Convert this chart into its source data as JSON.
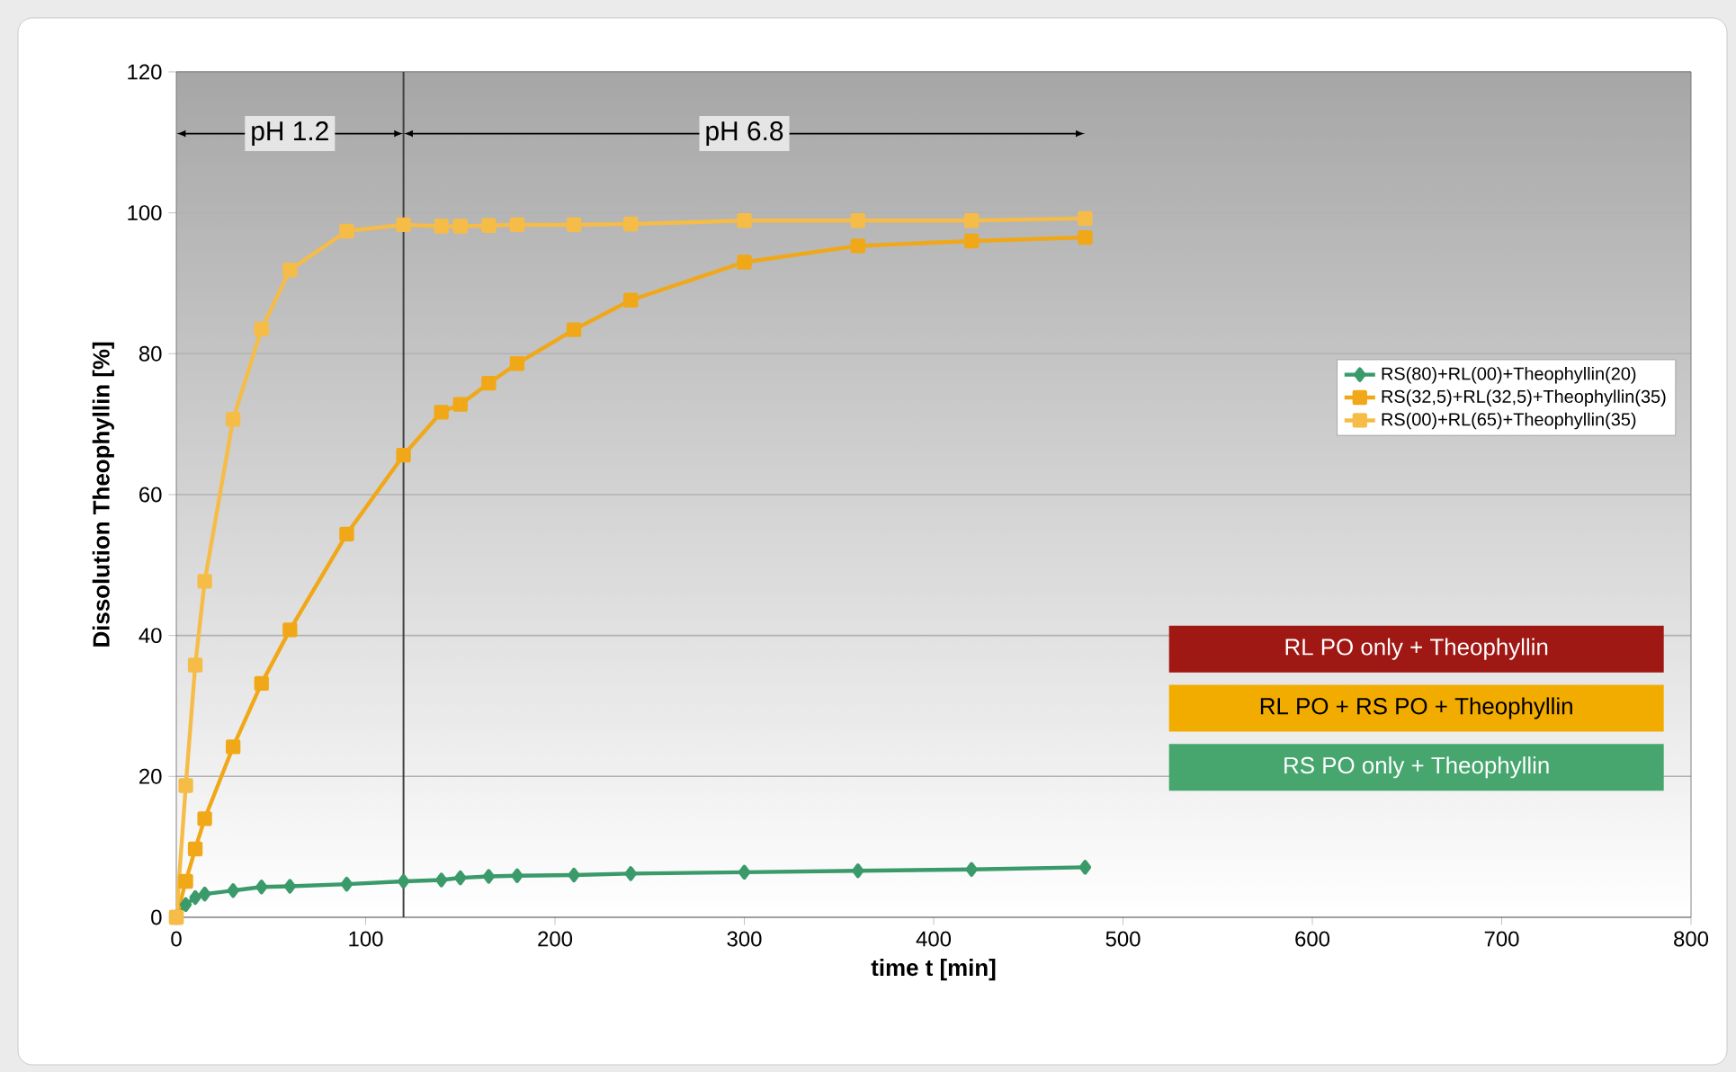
{
  "chart_data": {
    "type": "line",
    "xlabel": "time t [min]",
    "ylabel": "Dissolution Theophyllin [%]",
    "xlim": [
      0,
      800
    ],
    "xticks": [
      0,
      100,
      200,
      300,
      400,
      500,
      600,
      700,
      800
    ],
    "ylim": [
      0,
      120
    ],
    "yticks": [
      0,
      20,
      40,
      60,
      80,
      100,
      120
    ],
    "grid": "y",
    "legend": "right",
    "x": [
      0,
      5,
      10,
      15,
      30,
      45,
      60,
      90,
      120,
      140,
      150,
      165,
      180,
      210,
      240,
      300,
      360,
      420,
      480
    ],
    "series": [
      {
        "name": "RS(80)+RL(00)+Theophyllin(20)",
        "color": "#3a9a6a",
        "marker": "diamond",
        "values": [
          0,
          1.8,
          2.8,
          3.3,
          3.8,
          4.3,
          4.4,
          4.7,
          5.1,
          5.3,
          5.6,
          5.8,
          5.9,
          6.0,
          6.2,
          6.4,
          6.6,
          6.8,
          7.1
        ]
      },
      {
        "name": "RS(32,5)+RL(32,5)+Theophyllin(35)",
        "color": "#f0a818",
        "marker": "square",
        "values": [
          0,
          5.1,
          9.7,
          14,
          24.2,
          33.2,
          40.8,
          54.4,
          65.6,
          71.7,
          72.8,
          75.8,
          78.6,
          83.4,
          87.6,
          93.0,
          95.3,
          96.0,
          96.5
        ]
      },
      {
        "name": "RS(00)+RL(65)+Theophyllin(35)",
        "color": "#f6bc48",
        "marker": "square",
        "values": [
          0,
          18.7,
          35.8,
          47.7,
          70.7,
          83.5,
          91.9,
          97.4,
          98.3,
          98.1,
          98.1,
          98.2,
          98.3,
          98.3,
          98.4,
          98.9,
          98.9,
          98.9,
          99.2
        ]
      }
    ],
    "ref_lines": [
      {
        "axis": "x",
        "value": 120,
        "color": "#404040"
      }
    ],
    "annotations": [
      "pH 1.2",
      "pH 6.8",
      "RL PO only + Theophyllin",
      "RL PO + RS PO + Theophyllin",
      "RS PO only + Theophyllin"
    ]
  }
}
